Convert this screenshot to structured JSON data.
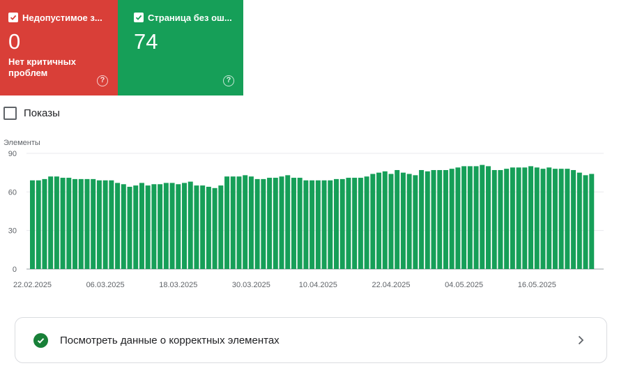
{
  "cards": [
    {
      "title": "Недопустимое з...",
      "value": "0",
      "subtitle": "Нет критичных проблем",
      "color": "#d93f38",
      "help": "?"
    },
    {
      "title": "Страница без ош...",
      "value": "74",
      "subtitle": "",
      "color": "#169f58",
      "help": "?"
    }
  ],
  "impressions_toggle": {
    "label": "Показы",
    "checked": false
  },
  "chart_data": {
    "type": "bar",
    "ylabel": "Элементы",
    "ylim": [
      0,
      90
    ],
    "yticks": [
      "0",
      "30",
      "60",
      "90"
    ],
    "xtick_labels": [
      "22.02.2025",
      "06.03.2025",
      "18.03.2025",
      "30.03.2025",
      "10.04.2025",
      "22.04.2025",
      "04.05.2025",
      "16.05.2025"
    ],
    "xtick_indices": [
      0,
      12,
      24,
      36,
      47,
      59,
      71,
      83
    ],
    "bar_color": "#169f58",
    "grid": true,
    "values": [
      69,
      69,
      70,
      72,
      72,
      71,
      71,
      70,
      70,
      70,
      70,
      69,
      69,
      69,
      67,
      66,
      64,
      65,
      67,
      65,
      66,
      66,
      67,
      67,
      66,
      67,
      68,
      65,
      65,
      64,
      63,
      65,
      72,
      72,
      72,
      73,
      72,
      70,
      70,
      71,
      71,
      72,
      73,
      71,
      71,
      69,
      69,
      69,
      69,
      69,
      70,
      70,
      71,
      71,
      71,
      72,
      74,
      75,
      76,
      74,
      77,
      75,
      74,
      73,
      77,
      76,
      77,
      77,
      77,
      78,
      79,
      80,
      80,
      80,
      81,
      80,
      77,
      77,
      78,
      79,
      79,
      79,
      80,
      79,
      78,
      79,
      78,
      78,
      78,
      77,
      75,
      73,
      74
    ]
  },
  "bottom_link": {
    "label": "Посмотреть данные о корректных элементах",
    "icon": "check-circle-icon",
    "chevron": "chevron-right-icon"
  }
}
